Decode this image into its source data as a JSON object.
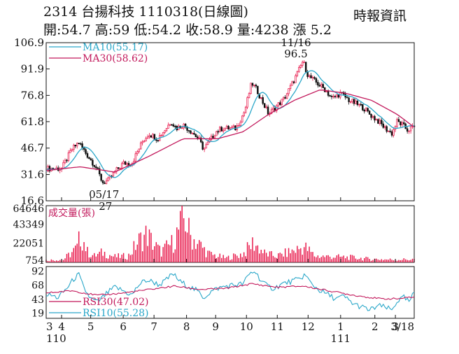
{
  "header": {
    "title": "2314  台揚科技 1110318(日線圖)",
    "stats": "開:54.7 高:59 低:54.2 收:58.9 量:4238 漲 5.2",
    "source": "時報資訊"
  },
  "colors": {
    "up": "#e8174a",
    "down": "#111111",
    "ma10": "#2aa7c9",
    "ma30": "#c2185b",
    "rsi10": "#2aa7c9",
    "rsi30": "#c2185b",
    "volume": "#e8174a"
  },
  "chart_data": {
    "type": "candlestick",
    "price_panel": {
      "yticks": [
        "106.9",
        "91.9",
        "76.8",
        "61.8",
        "46.7",
        "31.6",
        "16.6"
      ],
      "ytick_values": [
        106.9,
        91.9,
        76.8,
        61.8,
        46.7,
        31.6,
        16.6
      ],
      "ylim": [
        16.6,
        106.9
      ],
      "legend": [
        {
          "label": "MA10(55.17)",
          "series": "ma10"
        },
        {
          "label": "MA30(58.62)",
          "series": "ma30"
        }
      ],
      "annotations": [
        {
          "date_label": "11/16",
          "value_label": "96.5",
          "value": 96.5,
          "type": "high"
        },
        {
          "date_label": "05/17",
          "value_label": "27",
          "value": 27,
          "type": "low"
        }
      ],
      "price_path": [
        [
          0,
          35
        ],
        [
          18,
          35
        ],
        [
          30,
          46
        ],
        [
          38,
          50
        ],
        [
          46,
          44
        ],
        [
          52,
          40
        ],
        [
          58,
          36
        ],
        [
          66,
          27
        ],
        [
          72,
          28
        ],
        [
          80,
          33
        ],
        [
          90,
          38
        ],
        [
          100,
          38
        ],
        [
          112,
          50
        ],
        [
          120,
          55
        ],
        [
          130,
          52
        ],
        [
          140,
          58
        ],
        [
          146,
          62
        ],
        [
          152,
          58
        ],
        [
          160,
          60
        ],
        [
          170,
          56
        ],
        [
          178,
          52
        ],
        [
          184,
          46
        ],
        [
          190,
          50
        ],
        [
          198,
          56
        ],
        [
          206,
          58
        ],
        [
          214,
          58
        ],
        [
          222,
          58
        ],
        [
          232,
          68
        ],
        [
          240,
          84
        ],
        [
          246,
          80
        ],
        [
          254,
          72
        ],
        [
          260,
          66
        ],
        [
          268,
          70
        ],
        [
          278,
          75
        ],
        [
          288,
          84
        ],
        [
          296,
          92
        ],
        [
          300,
          96.5
        ],
        [
          306,
          88
        ],
        [
          316,
          84
        ],
        [
          326,
          80
        ],
        [
          334,
          75
        ],
        [
          344,
          78
        ],
        [
          354,
          74
        ],
        [
          362,
          72
        ],
        [
          370,
          70
        ],
        [
          378,
          66
        ],
        [
          388,
          62
        ],
        [
          396,
          58
        ],
        [
          404,
          55
        ],
        [
          410,
          62
        ],
        [
          416,
          60
        ],
        [
          422,
          57
        ],
        [
          430,
          58.9
        ]
      ],
      "ma30_path": [
        [
          0,
          34
        ],
        [
          40,
          36
        ],
        [
          80,
          33
        ],
        [
          120,
          42
        ],
        [
          160,
          52
        ],
        [
          200,
          52
        ],
        [
          230,
          56
        ],
        [
          260,
          66
        ],
        [
          290,
          74
        ],
        [
          320,
          80
        ],
        [
          350,
          78
        ],
        [
          380,
          74
        ],
        [
          410,
          66
        ],
        [
          430,
          58.62
        ]
      ]
    },
    "volume_panel": {
      "ylabel": "成交量(張)",
      "yticks": [
        "64646",
        "43349",
        "22051",
        "754"
      ],
      "ytick_values": [
        64646,
        43349,
        22051,
        754
      ],
      "ylim": [
        0,
        64646
      ],
      "path": [
        [
          0,
          3000
        ],
        [
          20,
          4000
        ],
        [
          36,
          20000
        ],
        [
          40,
          38000
        ],
        [
          44,
          30000
        ],
        [
          48,
          15000
        ],
        [
          56,
          9000
        ],
        [
          66,
          14000
        ],
        [
          80,
          8000
        ],
        [
          96,
          9000
        ],
        [
          108,
          30000
        ],
        [
          118,
          40000
        ],
        [
          124,
          28000
        ],
        [
          134,
          15000
        ],
        [
          148,
          28000
        ],
        [
          162,
          64646
        ],
        [
          168,
          38000
        ],
        [
          180,
          24000
        ],
        [
          190,
          12000
        ],
        [
          210,
          6000
        ],
        [
          230,
          12000
        ],
        [
          242,
          28000
        ],
        [
          256,
          12000
        ],
        [
          270,
          9000
        ],
        [
          292,
          18000
        ],
        [
          302,
          22000
        ],
        [
          314,
          9000
        ],
        [
          336,
          8000
        ],
        [
          356,
          7000
        ],
        [
          376,
          5000
        ],
        [
          400,
          4000
        ],
        [
          430,
          4238
        ]
      ]
    },
    "rsi_panel": {
      "yticks": [
        "92",
        "68",
        "43",
        "19"
      ],
      "ytick_values": [
        92,
        68,
        43,
        19
      ],
      "ylim": [
        10,
        100
      ],
      "legend": [
        {
          "label": "RSI30(47.02)",
          "series": "rsi30"
        },
        {
          "label": "RSI10(55.28)",
          "series": "rsi10"
        }
      ],
      "rsi10_path": [
        [
          0,
          52
        ],
        [
          14,
          46
        ],
        [
          24,
          62
        ],
        [
          32,
          78
        ],
        [
          38,
          86
        ],
        [
          44,
          62
        ],
        [
          52,
          44
        ],
        [
          60,
          38
        ],
        [
          70,
          52
        ],
        [
          80,
          64
        ],
        [
          90,
          58
        ],
        [
          100,
          50
        ],
        [
          108,
          68
        ],
        [
          116,
          76
        ],
        [
          124,
          74
        ],
        [
          132,
          68
        ],
        [
          140,
          76
        ],
        [
          148,
          88
        ],
        [
          156,
          74
        ],
        [
          166,
          66
        ],
        [
          176,
          58
        ],
        [
          184,
          46
        ],
        [
          192,
          56
        ],
        [
          200,
          62
        ],
        [
          210,
          66
        ],
        [
          220,
          68
        ],
        [
          230,
          70
        ],
        [
          238,
          88
        ],
        [
          244,
          92
        ],
        [
          250,
          78
        ],
        [
          258,
          66
        ],
        [
          266,
          62
        ],
        [
          276,
          70
        ],
        [
          286,
          74
        ],
        [
          296,
          78
        ],
        [
          302,
          86
        ],
        [
          310,
          70
        ],
        [
          318,
          60
        ],
        [
          328,
          52
        ],
        [
          338,
          44
        ],
        [
          348,
          48
        ],
        [
          358,
          36
        ],
        [
          368,
          30
        ],
        [
          378,
          24
        ],
        [
          388,
          32
        ],
        [
          398,
          28
        ],
        [
          404,
          24
        ],
        [
          410,
          40
        ],
        [
          418,
          46
        ],
        [
          424,
          38
        ],
        [
          430,
          55.28
        ]
      ],
      "rsi30_path": [
        [
          0,
          54
        ],
        [
          30,
          58
        ],
        [
          60,
          50
        ],
        [
          90,
          54
        ],
        [
          120,
          60
        ],
        [
          150,
          66
        ],
        [
          180,
          60
        ],
        [
          210,
          62
        ],
        [
          240,
          70
        ],
        [
          270,
          64
        ],
        [
          300,
          66
        ],
        [
          330,
          58
        ],
        [
          360,
          50
        ],
        [
          390,
          44
        ],
        [
          410,
          44
        ],
        [
          430,
          47.02
        ]
      ]
    },
    "x_axis": {
      "ticks": [
        {
          "label": "3",
          "t": 0
        },
        {
          "label": "4",
          "t": 18
        },
        {
          "label": "5",
          "t": 52
        },
        {
          "label": "6",
          "t": 90
        },
        {
          "label": "7",
          "t": 126
        },
        {
          "label": "8",
          "t": 164
        },
        {
          "label": "9",
          "t": 198
        },
        {
          "label": "10",
          "t": 234
        },
        {
          "label": "11",
          "t": 270
        },
        {
          "label": "12",
          "t": 306
        },
        {
          "label": "1",
          "t": 344
        },
        {
          "label": "2",
          "t": 384
        },
        {
          "label": "3",
          "t": 408
        },
        {
          "label": "3/18",
          "t": 430
        }
      ],
      "year_labels": [
        {
          "label": "110",
          "t": 0
        },
        {
          "label": "111",
          "t": 344
        }
      ],
      "t_range": [
        0,
        430
      ]
    }
  }
}
